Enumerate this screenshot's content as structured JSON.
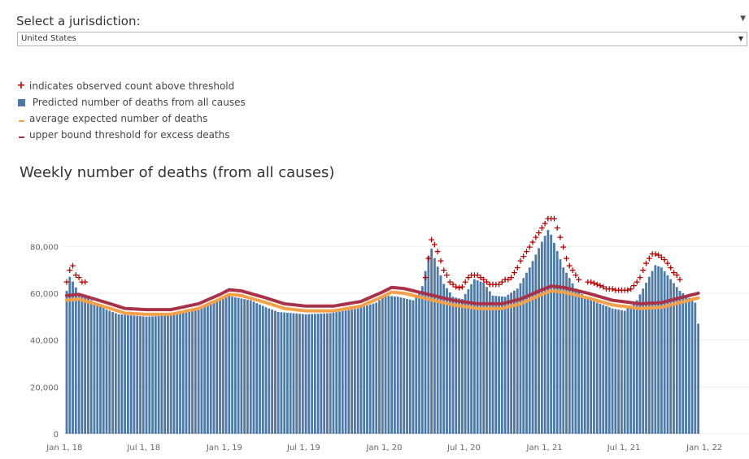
{
  "filter": {
    "label": "Select a jurisdiction:",
    "selected": "United States"
  },
  "legend": [
    {
      "icon": "plus-marker",
      "label": "indicates observed count above threshold",
      "color": "#b30000"
    },
    {
      "icon": "square-swatch",
      "label": " Predicted number of deaths from all causes",
      "color": "#4e79a7"
    },
    {
      "icon": "line-swatch",
      "label": "average expected number of deaths",
      "color": "#f4a14a"
    },
    {
      "icon": "line-swatch",
      "label": "upper bound threshold for excess deaths",
      "color": "#a83247"
    }
  ],
  "chart_data": {
    "type": "bar",
    "title": "Weekly number of deaths (from all causes)",
    "xlabel": "",
    "ylabel": "",
    "ylim": [
      0,
      95000
    ],
    "yticks": [
      0,
      20000,
      40000,
      60000,
      80000
    ],
    "ytick_labels": [
      "0",
      "20,000",
      "40,000",
      "60,000",
      "80,000"
    ],
    "x_start": "2018-01-06",
    "week_count": 207,
    "xtick_labels": [
      "Jan 1, 18",
      "Jul 1, 18",
      "Jan 1, 19",
      "Jul 1, 19",
      "Jan 1, 20",
      "Jul 1, 20",
      "Jan 1, 21",
      "Jul 1, 21",
      "Jan 1, 22"
    ],
    "xtick_dates": [
      "2018-01-01",
      "2018-07-01",
      "2019-01-01",
      "2019-07-01",
      "2020-01-01",
      "2020-07-01",
      "2021-01-01",
      "2021-07-01",
      "2022-01-01"
    ],
    "grid": true,
    "colors": {
      "bars": "#4e79a7",
      "expected": "#f4a14a",
      "threshold": "#a83247",
      "markers": "#b30000"
    },
    "series": [
      {
        "name": "Predicted number of deaths from all causes",
        "kind": "bar",
        "anchors": [
          [
            "2018-01-06",
            61000
          ],
          [
            "2018-01-13",
            67000
          ],
          [
            "2018-01-20",
            65000
          ],
          [
            "2018-02-03",
            60000
          ],
          [
            "2018-03-03",
            57000
          ],
          [
            "2018-04-07",
            53000
          ],
          [
            "2018-05-05",
            51000
          ],
          [
            "2018-07-07",
            50000
          ],
          [
            "2018-09-01",
            50500
          ],
          [
            "2018-11-03",
            53000
          ],
          [
            "2018-12-15",
            56500
          ],
          [
            "2019-01-05",
            59000
          ],
          [
            "2019-02-02",
            58000
          ],
          [
            "2019-03-02",
            57000
          ],
          [
            "2019-04-06",
            54000
          ],
          [
            "2019-05-04",
            52000
          ],
          [
            "2019-07-06",
            51000
          ],
          [
            "2019-08-31",
            51500
          ],
          [
            "2019-11-02",
            53500
          ],
          [
            "2019-12-14",
            56000
          ],
          [
            "2020-01-04",
            59000
          ],
          [
            "2020-02-01",
            58500
          ],
          [
            "2020-03-07",
            57000
          ],
          [
            "2020-03-28",
            63000
          ],
          [
            "2020-04-11",
            76000
          ],
          [
            "2020-04-18",
            79000
          ],
          [
            "2020-04-25",
            75000
          ],
          [
            "2020-05-16",
            64000
          ],
          [
            "2020-06-06",
            58500
          ],
          [
            "2020-06-27",
            57500
          ],
          [
            "2020-07-25",
            66000
          ],
          [
            "2020-08-15",
            64500
          ],
          [
            "2020-09-05",
            59000
          ],
          [
            "2020-10-03",
            58500
          ],
          [
            "2020-10-31",
            62000
          ],
          [
            "2020-11-28",
            71000
          ],
          [
            "2020-12-26",
            82000
          ],
          [
            "2021-01-09",
            87000
          ],
          [
            "2021-01-16",
            85000
          ],
          [
            "2021-02-13",
            71000
          ],
          [
            "2021-03-13",
            62000
          ],
          [
            "2021-04-03",
            58500
          ],
          [
            "2021-05-01",
            56000
          ],
          [
            "2021-06-05",
            53500
          ],
          [
            "2021-07-03",
            52500
          ],
          [
            "2021-07-31",
            57000
          ],
          [
            "2021-08-28",
            67000
          ],
          [
            "2021-09-11",
            72000
          ],
          [
            "2021-09-25",
            71000
          ],
          [
            "2021-10-16",
            66000
          ],
          [
            "2021-11-06",
            61000
          ],
          [
            "2021-12-11",
            56000
          ],
          [
            "2021-12-18",
            47000
          ]
        ]
      },
      {
        "name": "average expected number of deaths",
        "kind": "line",
        "anchors": [
          [
            "2018-01-06",
            57000
          ],
          [
            "2018-02-03",
            57500
          ],
          [
            "2018-04-07",
            54000
          ],
          [
            "2018-05-19",
            51500
          ],
          [
            "2018-07-07",
            51000
          ],
          [
            "2018-09-01",
            51000
          ],
          [
            "2018-11-03",
            53500
          ],
          [
            "2018-12-22",
            57500
          ],
          [
            "2019-01-12",
            59500
          ],
          [
            "2019-02-09",
            59000
          ],
          [
            "2019-04-06",
            56000
          ],
          [
            "2019-05-18",
            53500
          ],
          [
            "2019-07-06",
            52500
          ],
          [
            "2019-09-07",
            52500
          ],
          [
            "2019-11-09",
            54500
          ],
          [
            "2019-12-28",
            58500
          ],
          [
            "2020-01-18",
            60500
          ],
          [
            "2020-02-15",
            60000
          ],
          [
            "2020-04-11",
            57500
          ],
          [
            "2020-06-06",
            55000
          ],
          [
            "2020-08-01",
            53500
          ],
          [
            "2020-09-26",
            53500
          ],
          [
            "2020-11-07",
            55500
          ],
          [
            "2020-12-26",
            59500
          ],
          [
            "2021-01-16",
            61000
          ],
          [
            "2021-02-13",
            60500
          ],
          [
            "2021-04-10",
            58000
          ],
          [
            "2021-06-05",
            55000
          ],
          [
            "2021-08-07",
            53500
          ],
          [
            "2021-09-25",
            54000
          ],
          [
            "2021-11-06",
            56000
          ],
          [
            "2021-12-18",
            58000
          ]
        ]
      },
      {
        "name": "upper bound threshold for excess deaths",
        "kind": "line",
        "anchors": [
          [
            "2018-01-06",
            59000
          ],
          [
            "2018-02-03",
            59500
          ],
          [
            "2018-04-07",
            56000
          ],
          [
            "2018-05-19",
            53500
          ],
          [
            "2018-07-07",
            53000
          ],
          [
            "2018-09-01",
            53000
          ],
          [
            "2018-11-03",
            55500
          ],
          [
            "2018-12-22",
            59500
          ],
          [
            "2019-01-12",
            61500
          ],
          [
            "2019-02-09",
            61000
          ],
          [
            "2019-04-06",
            58000
          ],
          [
            "2019-05-18",
            55500
          ],
          [
            "2019-07-06",
            54500
          ],
          [
            "2019-09-07",
            54500
          ],
          [
            "2019-11-09",
            56500
          ],
          [
            "2019-12-28",
            60500
          ],
          [
            "2020-01-18",
            62500
          ],
          [
            "2020-02-15",
            62000
          ],
          [
            "2020-04-11",
            59500
          ],
          [
            "2020-06-06",
            57000
          ],
          [
            "2020-08-01",
            55500
          ],
          [
            "2020-09-26",
            55500
          ],
          [
            "2020-11-07",
            57500
          ],
          [
            "2020-12-26",
            61500
          ],
          [
            "2021-01-16",
            63000
          ],
          [
            "2021-02-13",
            62500
          ],
          [
            "2021-04-10",
            60000
          ],
          [
            "2021-06-05",
            57000
          ],
          [
            "2021-08-07",
            55500
          ],
          [
            "2021-09-25",
            56000
          ],
          [
            "2021-11-06",
            58000
          ],
          [
            "2021-12-18",
            60000
          ]
        ]
      },
      {
        "name": "indicates observed count above threshold",
        "kind": "scatter",
        "points": [
          [
            "2018-01-06",
            65000
          ],
          [
            "2018-01-13",
            70000
          ],
          [
            "2018-01-20",
            72000
          ],
          [
            "2018-01-27",
            68000
          ],
          [
            "2018-02-03",
            67000
          ],
          [
            "2018-02-10",
            65000
          ],
          [
            "2018-02-17",
            65000
          ],
          [
            "2020-04-04",
            67000
          ],
          [
            "2020-04-11",
            75000
          ],
          [
            "2020-04-18",
            83000
          ],
          [
            "2020-04-25",
            81000
          ],
          [
            "2020-05-02",
            78000
          ],
          [
            "2020-05-09",
            74000
          ],
          [
            "2020-05-16",
            70000
          ],
          [
            "2020-05-23",
            68000
          ],
          [
            "2020-05-30",
            65000
          ],
          [
            "2020-06-06",
            64000
          ],
          [
            "2020-06-13",
            63000
          ],
          [
            "2020-06-20",
            62500
          ],
          [
            "2020-06-27",
            63000
          ],
          [
            "2020-07-04",
            65000
          ],
          [
            "2020-07-11",
            67000
          ],
          [
            "2020-07-18",
            68000
          ],
          [
            "2020-07-25",
            68000
          ],
          [
            "2020-08-01",
            68000
          ],
          [
            "2020-08-08",
            67000
          ],
          [
            "2020-08-15",
            66000
          ],
          [
            "2020-08-22",
            65000
          ],
          [
            "2020-08-29",
            64000
          ],
          [
            "2020-09-05",
            64000
          ],
          [
            "2020-09-12",
            64000
          ],
          [
            "2020-09-19",
            64000
          ],
          [
            "2020-09-26",
            65000
          ],
          [
            "2020-10-03",
            66000
          ],
          [
            "2020-10-10",
            66000
          ],
          [
            "2020-10-17",
            67000
          ],
          [
            "2020-10-24",
            69000
          ],
          [
            "2020-10-31",
            71000
          ],
          [
            "2020-11-07",
            74000
          ],
          [
            "2020-11-14",
            76000
          ],
          [
            "2020-11-21",
            78000
          ],
          [
            "2020-11-28",
            80000
          ],
          [
            "2020-12-05",
            82000
          ],
          [
            "2020-12-12",
            84000
          ],
          [
            "2020-12-19",
            86000
          ],
          [
            "2020-12-26",
            88000
          ],
          [
            "2021-01-02",
            90000
          ],
          [
            "2021-01-09",
            92000
          ],
          [
            "2021-01-16",
            92000
          ],
          [
            "2021-01-23",
            92000
          ],
          [
            "2021-01-30",
            88000
          ],
          [
            "2021-02-06",
            84000
          ],
          [
            "2021-02-13",
            80000
          ],
          [
            "2021-02-20",
            75000
          ],
          [
            "2021-02-27",
            72000
          ],
          [
            "2021-03-06",
            70000
          ],
          [
            "2021-03-13",
            68000
          ],
          [
            "2021-03-20",
            66000
          ],
          [
            "2021-04-10",
            65000
          ],
          [
            "2021-04-17",
            65000
          ],
          [
            "2021-04-24",
            64500
          ],
          [
            "2021-05-01",
            64000
          ],
          [
            "2021-05-08",
            63500
          ],
          [
            "2021-05-15",
            63000
          ],
          [
            "2021-05-22",
            62000
          ],
          [
            "2021-05-29",
            62000
          ],
          [
            "2021-06-05",
            62000
          ],
          [
            "2021-06-12",
            61500
          ],
          [
            "2021-06-19",
            61500
          ],
          [
            "2021-06-26",
            61500
          ],
          [
            "2021-07-03",
            61500
          ],
          [
            "2021-07-10",
            61500
          ],
          [
            "2021-07-17",
            62000
          ],
          [
            "2021-07-24",
            63500
          ],
          [
            "2021-07-31",
            65000
          ],
          [
            "2021-08-07",
            67000
          ],
          [
            "2021-08-14",
            70000
          ],
          [
            "2021-08-21",
            73000
          ],
          [
            "2021-08-28",
            75000
          ],
          [
            "2021-09-04",
            77000
          ],
          [
            "2021-09-11",
            77000
          ],
          [
            "2021-09-18",
            76500
          ],
          [
            "2021-09-25",
            75500
          ],
          [
            "2021-10-02",
            74500
          ],
          [
            "2021-10-09",
            73000
          ],
          [
            "2021-10-16",
            71000
          ],
          [
            "2021-10-23",
            69000
          ],
          [
            "2021-10-30",
            68000
          ],
          [
            "2021-11-06",
            66000
          ]
        ]
      }
    ]
  }
}
